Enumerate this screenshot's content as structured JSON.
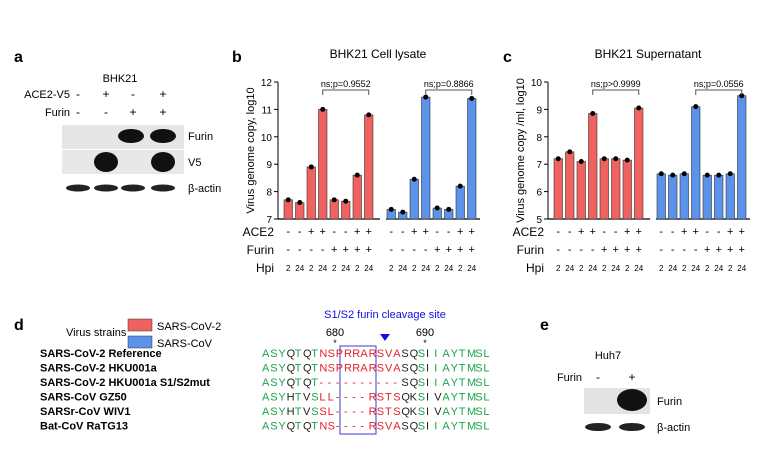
{
  "panels": {
    "a": {
      "letter": "a",
      "cell": "BHK21",
      "rows": [
        {
          "label": "ACE2-V5",
          "signs": [
            "-",
            "+",
            "-",
            "+"
          ]
        },
        {
          "label": "Furin",
          "signs": [
            "-",
            "-",
            "+",
            "+"
          ]
        }
      ],
      "bands": [
        "Furin",
        "V5",
        "β-actin"
      ]
    },
    "b": {
      "letter": "b"
    },
    "c": {
      "letter": "c"
    },
    "d": {
      "letter": "d",
      "title": "S1/S2 furin cleavage site",
      "header": "Virus strains",
      "positions": [
        "680",
        "690"
      ],
      "strains": [
        {
          "name": "SARS-CoV-2 Reference",
          "seq": "ASYQTQTNSPRRARSVASQSIIAYTMSL",
          "colors": "gggkgkgrrrrrrrrrrkkgkggggggg"
        },
        {
          "name": "SARS-CoV-2 HKU001a",
          "seq": "ASYQTQTNSPRRARSVASQSIIAYTMSL",
          "colors": "gggkgkgrrrrrrrrrrkkgkggggggg"
        },
        {
          "name": "SARS-CoV-2 HKU001a S1/S2mut",
          "seq": "ASYQTQT----------SQSIIAYTMSL",
          "colors": "gggkgkgrrrrrrrrrrkkgkggggggg"
        },
        {
          "name": "SARS-CoV GZ50",
          "seq": "ASYHTVSLL----RSTSQKSIVAYTMSL",
          "colors": "gggkgkgrrrrrrrrrrkkgkkgggggg"
        },
        {
          "name": "SARSr-CoV WIV1",
          "seq": "ASYHTVSSL----RSTSQKSIVAYTMSL",
          "colors": "gggkgkgrrrrrrrrrrkkgkkgggggg"
        },
        {
          "name": "Bat-CoV RaTG13",
          "seq": "ASYQTQTNS----RSVASQSIIAYTMSL",
          "colors": "gggkgkgrrrrrrrrrrkkgkggggggg"
        }
      ]
    },
    "e": {
      "letter": "e",
      "cell": "Huh7",
      "row": {
        "label": "Furin",
        "signs": [
          "-",
          "+"
        ]
      },
      "bands": [
        "Furin",
        "β-actin"
      ]
    }
  },
  "legend": [
    {
      "name": "SARS-CoV-2",
      "color": "#f0625f"
    },
    {
      "name": "SARS-CoV",
      "color": "#5b93ea"
    }
  ],
  "colors": {
    "green": "#1aa34a",
    "red": "#e8202a",
    "black": "#222222",
    "box": "#3a3adf",
    "arrow": "#1010e0"
  },
  "conditions": {
    "row_labels": [
      "ACE2",
      "Furin",
      "Hpi"
    ],
    "ace2": [
      "-",
      "-",
      "+",
      "+",
      "-",
      "-",
      "+",
      "+"
    ],
    "furin": [
      "-",
      "-",
      "-",
      "-",
      "+",
      "+",
      "+",
      "+"
    ],
    "hpi": [
      "2",
      "24",
      "2",
      "24",
      "2",
      "24",
      "2",
      "24"
    ]
  },
  "chart_data": [
    {
      "type": "bar",
      "title": "BHK21 Cell lysate",
      "ylabel": "Virus genome copy, log10",
      "ylim": [
        7,
        12
      ],
      "yticks": [
        "7",
        "8",
        "9",
        "10",
        "11",
        "12"
      ],
      "series": [
        {
          "name": "SARS-CoV-2",
          "values": [
            7.7,
            7.6,
            8.9,
            11.0,
            7.7,
            7.65,
            8.6,
            10.8
          ]
        },
        {
          "name": "SARS-CoV",
          "values": [
            7.35,
            7.25,
            8.45,
            11.45,
            7.4,
            7.35,
            8.2,
            11.4
          ]
        }
      ],
      "annotations": [
        "ns;p=0.9552",
        "ns;p=0.8866"
      ]
    },
    {
      "type": "bar",
      "title": "BHK21 Supernatant",
      "ylabel": "Virus genome copy /ml, log10",
      "ylim": [
        5,
        10
      ],
      "yticks": [
        "5",
        "6",
        "7",
        "8",
        "9",
        "10"
      ],
      "series": [
        {
          "name": "SARS-CoV-2",
          "values": [
            7.2,
            7.45,
            7.1,
            8.85,
            7.2,
            7.2,
            7.15,
            9.05
          ]
        },
        {
          "name": "SARS-CoV",
          "values": [
            6.65,
            6.6,
            6.65,
            9.1,
            6.6,
            6.6,
            6.65,
            9.5
          ]
        }
      ],
      "annotations": [
        "ns;p>0.9999",
        "ns;p=0.0556"
      ]
    }
  ]
}
